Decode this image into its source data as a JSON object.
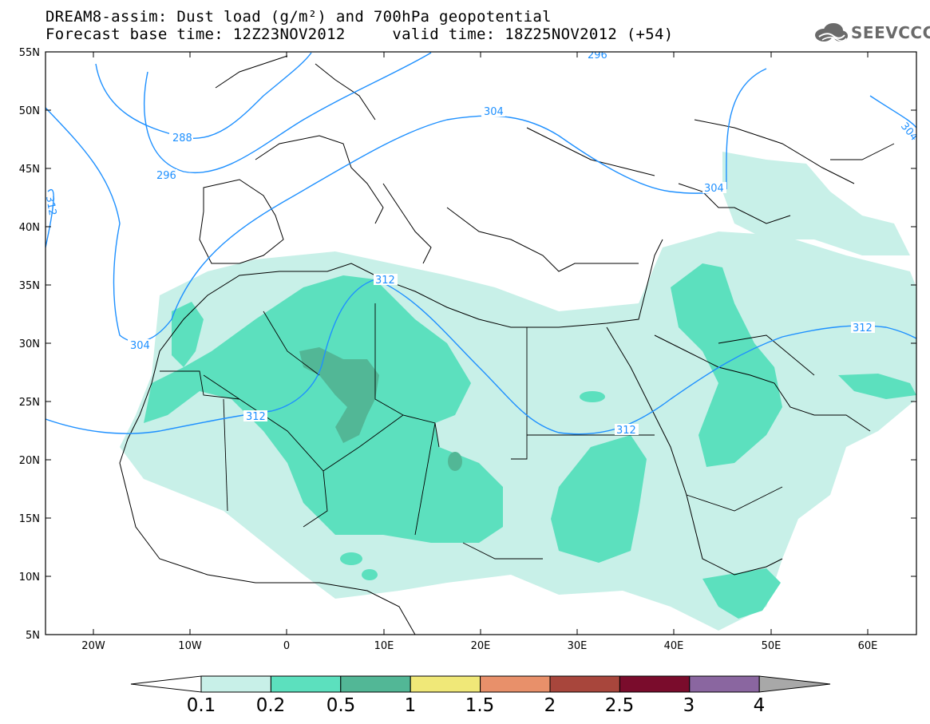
{
  "title": {
    "line1": "DREAM8-assim: Dust load (g/m²) and 700hPa geopotential",
    "line2": "Forecast base time: 12Z23NOV2012     valid time: 18Z25NOV2012 (+54)"
  },
  "logo": {
    "text": "SEEVCCC",
    "icon": "cloud-icon"
  },
  "axes": {
    "lat_labels": [
      "55N",
      "50N",
      "45N",
      "40N",
      "35N",
      "30N",
      "25N",
      "20N",
      "15N",
      "10N",
      "5N"
    ],
    "lon_labels": [
      "20W",
      "10W",
      "0",
      "10E",
      "20E",
      "30E",
      "40E",
      "50E",
      "60E"
    ],
    "lat_range": [
      5,
      55
    ],
    "lon_range": [
      -25,
      65
    ]
  },
  "contours": {
    "color": "#1e90ff",
    "labels": [
      "288",
      "296",
      "296",
      "304",
      "304",
      "304",
      "304",
      "312",
      "312",
      "312",
      "312",
      "312"
    ]
  },
  "colorbar": {
    "labels": [
      "0.1",
      "0.2",
      "0.5",
      "1",
      "1.5",
      "2",
      "2.5",
      "3",
      "4"
    ],
    "colors": [
      "#c8f0e8",
      "#5ce0be",
      "#52b796",
      "#f0e878",
      "#e8906a",
      "#a8463c",
      "#7a0c2c",
      "#8a66a0",
      "#a8a8a8"
    ]
  }
}
